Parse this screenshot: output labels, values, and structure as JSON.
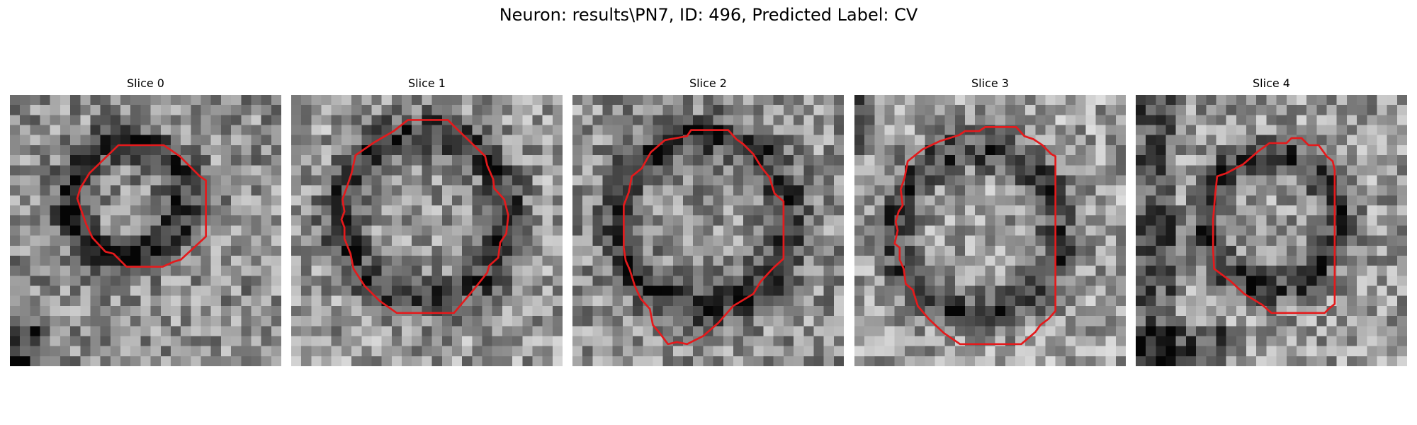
{
  "figure": {
    "title": "Neuron: results\\PN7, ID: 496, Predicted Label: CV",
    "contour_color": "#e41a1c",
    "grid_size": 27,
    "slices": [
      {
        "title": "Slice 0",
        "contour": [
          [
            10.8,
            5.0
          ],
          [
            15.3,
            5.0
          ],
          [
            16.9,
            6.1
          ],
          [
            18.9,
            8.1
          ],
          [
            19.5,
            8.5
          ],
          [
            19.5,
            14.1
          ],
          [
            17.0,
            16.4
          ],
          [
            16.3,
            16.6
          ],
          [
            15.2,
            17.1
          ],
          [
            11.6,
            17.1
          ],
          [
            10.3,
            15.8
          ],
          [
            9.5,
            15.6
          ],
          [
            8.2,
            14.2
          ],
          [
            7.6,
            12.9
          ],
          [
            7.0,
            11.2
          ],
          [
            6.7,
            10.3
          ],
          [
            7.0,
            9.3
          ],
          [
            7.9,
            7.8
          ]
        ]
      },
      {
        "title": "Slice 1",
        "contour": [
          [
            11.6,
            2.5
          ],
          [
            15.6,
            2.5
          ],
          [
            16.4,
            3.3
          ],
          [
            19.3,
            6.1
          ],
          [
            19.5,
            7.0
          ],
          [
            20.1,
            8.4
          ],
          [
            20.2,
            9.3
          ],
          [
            21.2,
            10.4
          ],
          [
            21.6,
            12.0
          ],
          [
            21.4,
            13.8
          ],
          [
            20.8,
            14.7
          ],
          [
            20.6,
            16.2
          ],
          [
            19.7,
            17.0
          ],
          [
            19.5,
            17.7
          ],
          [
            18.3,
            19.2
          ],
          [
            16.2,
            21.7
          ],
          [
            10.5,
            21.7
          ],
          [
            8.8,
            20.5
          ],
          [
            7.3,
            19.0
          ],
          [
            6.2,
            17.3
          ],
          [
            5.9,
            15.8
          ],
          [
            5.3,
            14.3
          ],
          [
            5.3,
            13.2
          ],
          [
            5.0,
            12.4
          ],
          [
            5.3,
            11.6
          ],
          [
            5.1,
            10.4
          ],
          [
            5.5,
            9.3
          ],
          [
            6.0,
            7.8
          ],
          [
            6.4,
            6.0
          ],
          [
            8.3,
            4.7
          ],
          [
            10.2,
            3.6
          ]
        ]
      },
      {
        "title": "Slice 2",
        "contour": [
          [
            9.2,
            4.5
          ],
          [
            11.4,
            4.1
          ],
          [
            11.8,
            3.5
          ],
          [
            15.5,
            3.5
          ],
          [
            16.3,
            4.4
          ],
          [
            17.0,
            4.9
          ],
          [
            18.0,
            5.9
          ],
          [
            18.8,
            7.2
          ],
          [
            19.6,
            8.2
          ],
          [
            20.1,
            9.8
          ],
          [
            21.0,
            10.6
          ],
          [
            21.0,
            16.3
          ],
          [
            20.0,
            17.2
          ],
          [
            18.7,
            18.6
          ],
          [
            18.0,
            19.8
          ],
          [
            16.0,
            21.0
          ],
          [
            14.5,
            22.7
          ],
          [
            13.0,
            24.0
          ],
          [
            11.4,
            24.8
          ],
          [
            10.4,
            24.6
          ],
          [
            9.5,
            24.8
          ],
          [
            8.6,
            23.6
          ],
          [
            8.0,
            22.9
          ],
          [
            7.7,
            21.3
          ],
          [
            6.8,
            20.3
          ],
          [
            6.2,
            19.0
          ],
          [
            5.7,
            17.4
          ],
          [
            5.3,
            16.5
          ],
          [
            5.1,
            15.2
          ],
          [
            5.1,
            11.0
          ],
          [
            5.6,
            9.7
          ],
          [
            5.9,
            8.1
          ],
          [
            6.9,
            7.3
          ],
          [
            7.8,
            5.7
          ]
        ]
      },
      {
        "title": "Slice 3",
        "contour": [
          [
            10.4,
            4.0
          ],
          [
            11.0,
            3.6
          ],
          [
            12.4,
            3.6
          ],
          [
            13.0,
            3.2
          ],
          [
            16.1,
            3.2
          ],
          [
            16.9,
            4.1
          ],
          [
            17.8,
            4.4
          ],
          [
            18.7,
            5.0
          ],
          [
            19.6,
            5.9
          ],
          [
            20.0,
            6.1
          ],
          [
            20.0,
            21.5
          ],
          [
            19.3,
            22.3
          ],
          [
            18.5,
            22.9
          ],
          [
            18.0,
            23.6
          ],
          [
            16.6,
            24.8
          ],
          [
            10.5,
            24.8
          ],
          [
            8.9,
            23.7
          ],
          [
            7.4,
            22.3
          ],
          [
            6.3,
            21.0
          ],
          [
            5.8,
            19.4
          ],
          [
            5.1,
            18.8
          ],
          [
            4.9,
            17.3
          ],
          [
            4.5,
            16.4
          ],
          [
            4.5,
            15.2
          ],
          [
            4.0,
            14.8
          ],
          [
            4.3,
            13.5
          ],
          [
            4.1,
            12.6
          ],
          [
            4.4,
            11.6
          ],
          [
            4.8,
            11.0
          ],
          [
            4.6,
            9.4
          ],
          [
            5.0,
            8.2
          ],
          [
            5.3,
            6.6
          ],
          [
            6.8,
            5.4
          ],
          [
            8.5,
            4.6
          ]
        ]
      },
      {
        "title": "Slice 4",
        "contour": [
          [
            14.0,
            4.8
          ],
          [
            15.0,
            4.8
          ],
          [
            15.5,
            4.3
          ],
          [
            16.5,
            4.3
          ],
          [
            17.2,
            5.0
          ],
          [
            18.2,
            5.0
          ],
          [
            19.0,
            6.1
          ],
          [
            19.6,
            6.6
          ],
          [
            19.8,
            7.5
          ],
          [
            19.8,
            20.8
          ],
          [
            19.2,
            21.3
          ],
          [
            18.8,
            21.7
          ],
          [
            13.5,
            21.7
          ],
          [
            12.6,
            20.9
          ],
          [
            10.8,
            19.8
          ],
          [
            9.4,
            18.5
          ],
          [
            7.8,
            17.3
          ],
          [
            7.7,
            15.4
          ],
          [
            7.7,
            12.4
          ],
          [
            7.9,
            10.0
          ],
          [
            8.1,
            8.1
          ],
          [
            9.0,
            7.8
          ],
          [
            10.7,
            6.9
          ],
          [
            11.5,
            6.2
          ],
          [
            12.2,
            5.6
          ],
          [
            13.3,
            4.8
          ]
        ]
      }
    ]
  }
}
